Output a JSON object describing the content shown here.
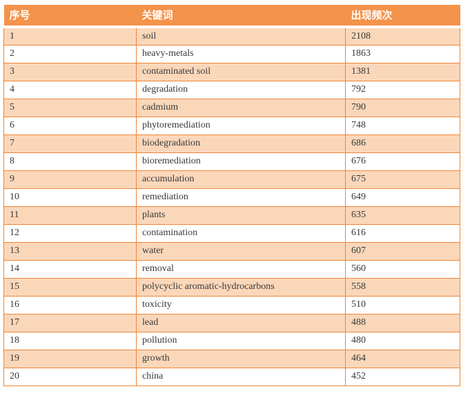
{
  "chart_data": {
    "type": "table",
    "columns": [
      "序号",
      "关键词",
      "出现频次"
    ],
    "rows": [
      [
        "1",
        "soil",
        "2108"
      ],
      [
        "2",
        "heavy-metals",
        "1863"
      ],
      [
        "3",
        "contaminated soil",
        "1381"
      ],
      [
        "4",
        "degradation",
        "792"
      ],
      [
        "5",
        "cadmium",
        "790"
      ],
      [
        "6",
        "phytoremediation",
        "748"
      ],
      [
        "7",
        "biodegradation",
        "686"
      ],
      [
        "8",
        "bioremediation",
        "676"
      ],
      [
        "9",
        "accumulation",
        "675"
      ],
      [
        "10",
        "remediation",
        "649"
      ],
      [
        "11",
        "plants",
        "635"
      ],
      [
        "12",
        "contamination",
        "616"
      ],
      [
        "13",
        "water",
        "607"
      ],
      [
        "14",
        "removal",
        "560"
      ],
      [
        "15",
        "polycyclic aromatic-hydrocarbons",
        "558"
      ],
      [
        "16",
        "toxicity",
        "510"
      ],
      [
        "17",
        "lead",
        "488"
      ],
      [
        "18",
        "pollution",
        "480"
      ],
      [
        "19",
        "growth",
        "464"
      ],
      [
        "20",
        "china",
        "452"
      ]
    ]
  },
  "colors": {
    "header_bg": "#F4934A",
    "header_text": "#FFFFFF",
    "row_alt_bg": "#FBD7BA",
    "row_bg": "#FFFFFF",
    "border_color": "#ED8536",
    "cell_text": "#3A3A3A",
    "page_bg": "#FFFFFF"
  }
}
